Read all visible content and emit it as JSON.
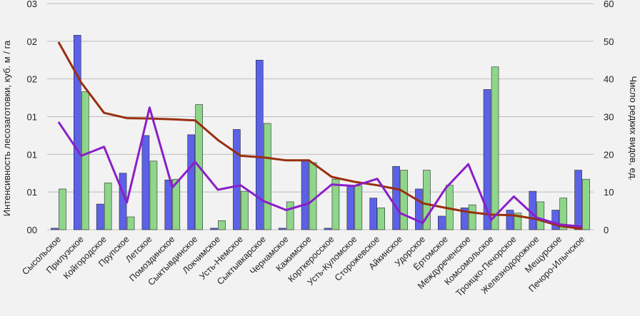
{
  "chart_data": {
    "type": "bar",
    "title": "",
    "ylabel": "Интенсивность лесозаготовки, куб. м / га",
    "y2label": "Число редких видов, ед.",
    "ylim": [
      0,
      0.3
    ],
    "y2lim": [
      0,
      60
    ],
    "left_tick_labels": [
      "00",
      "01",
      "01",
      "01",
      "02",
      "02",
      "03"
    ],
    "right_tick_labels": [
      "0",
      "10",
      "20",
      "30",
      "40",
      "50",
      "60"
    ],
    "grid": true,
    "legend": "none",
    "categories": [
      "Сысольское",
      "Прилузское",
      "Койгородское",
      "Прупское",
      "Летское",
      "Помоздинское",
      "Сыктывдинское",
      "Локчимское",
      "Усть-Немское",
      "Сыктывкарское",
      "Чернамское",
      "Кажимское",
      "Корткеросское",
      "Усть-Куломское",
      "Сторожевское",
      "Айкинское",
      "Удорское",
      "Ёртомское",
      "Междуреченское",
      "Комсомольское",
      "Троицко-Печорское",
      "Железнодорожное",
      "Мещурское",
      "Печоро-Илычское"
    ],
    "series": [
      {
        "name": "",
        "kind": "bar",
        "axis": "left",
        "color": "#5b62e8",
        "values": [
          0.002,
          0.258,
          0.034,
          0.075,
          0.125,
          0.066,
          0.126,
          0.002,
          0.133,
          0.225,
          0.002,
          0.092,
          0.002,
          0.058,
          0.042,
          0.084,
          0.054,
          0.018,
          0.029,
          0.186,
          0.026,
          0.051,
          0.026,
          0.079
        ]
      },
      {
        "name": "",
        "kind": "bar",
        "axis": "left",
        "color": "#8ed68a",
        "values": [
          0.054,
          0.183,
          0.062,
          0.017,
          0.091,
          0.067,
          0.166,
          0.012,
          0.051,
          0.141,
          0.037,
          0.089,
          0.067,
          0.058,
          0.029,
          0.079,
          0.079,
          0.059,
          0.033,
          0.216,
          0.022,
          0.037,
          0.042,
          0.067
        ]
      },
      {
        "name": "",
        "kind": "line",
        "axis": "right",
        "color": "#9a2e0e",
        "values": [
          49.8,
          39.0,
          31.0,
          29.6,
          29.5,
          29.3,
          29.0,
          23.8,
          19.6,
          19.2,
          18.4,
          18.4,
          14.0,
          12.7,
          11.8,
          10.6,
          7.0,
          5.8,
          4.7,
          4.0,
          3.8,
          2.8,
          1.0,
          0.2
        ]
      },
      {
        "name": "",
        "kind": "line",
        "axis": "right",
        "color": "#8a1fc9",
        "values": [
          28.6,
          19.6,
          22.0,
          7.2,
          32.4,
          11.2,
          18.0,
          10.6,
          11.8,
          7.6,
          5.2,
          7.0,
          12.0,
          11.6,
          13.5,
          4.4,
          1.8,
          11.0,
          17.4,
          2.6,
          8.8,
          3.2,
          1.4,
          0.8
        ]
      }
    ]
  }
}
